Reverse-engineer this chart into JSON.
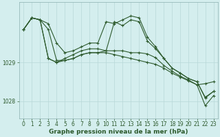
{
  "title": "Graphe pression niveau de la mer (hPa)",
  "background_color": "#d4eeee",
  "grid_color": "#b8d8d8",
  "line_color": "#2d5a2d",
  "xlim": [
    -0.5,
    23.5
  ],
  "ylim": [
    1027.55,
    1030.55
  ],
  "yticks": [
    1028,
    1029
  ],
  "xticks": [
    0,
    1,
    2,
    3,
    4,
    5,
    6,
    7,
    8,
    9,
    10,
    11,
    12,
    13,
    14,
    15,
    16,
    17,
    18,
    19,
    20,
    21,
    22,
    23
  ],
  "series": [
    [
      1029.85,
      1030.15,
      1030.1,
      1029.85,
      1029.05,
      1029.05,
      1029.1,
      1029.2,
      1029.25,
      1029.25,
      1029.25,
      1029.2,
      1029.15,
      1029.1,
      1029.05,
      1029.0,
      1028.95,
      1028.85,
      1028.72,
      1028.62,
      1028.52,
      1028.42,
      1028.45,
      1028.5
    ],
    [
      1029.85,
      1030.15,
      1030.1,
      1029.1,
      1029.0,
      1029.05,
      1029.1,
      1029.2,
      1029.25,
      1029.25,
      1029.3,
      1030.05,
      1029.95,
      1030.1,
      1030.05,
      1029.55,
      1029.35,
      1029.1,
      1028.85,
      1028.72,
      1028.58,
      1028.5,
      1028.1,
      1028.25
    ],
    [
      1029.85,
      1030.15,
      1030.1,
      1030.0,
      1029.5,
      1029.25,
      1029.3,
      1029.4,
      1029.5,
      1029.5,
      1030.05,
      1030.0,
      1030.1,
      1030.2,
      1030.15,
      1029.65,
      1029.4,
      1029.1,
      1028.85,
      1028.72,
      1028.58,
      1028.5,
      1028.08,
      1028.25
    ],
    [
      1029.85,
      1030.15,
      1030.1,
      1029.1,
      1029.0,
      1029.1,
      1029.2,
      1029.3,
      1029.35,
      1029.35,
      1029.3,
      1029.3,
      1029.3,
      1029.25,
      1029.25,
      1029.22,
      1029.12,
      1028.92,
      1028.77,
      1028.64,
      1028.54,
      1028.42,
      1027.88,
      1028.14
    ]
  ],
  "marker": "+",
  "marker_size": 3,
  "line_width": 0.8,
  "title_fontsize": 6.5,
  "tick_label_color": "#2d5a2d",
  "tick_label_fontsize": 5.5,
  "spine_color": "#8ab0b0"
}
